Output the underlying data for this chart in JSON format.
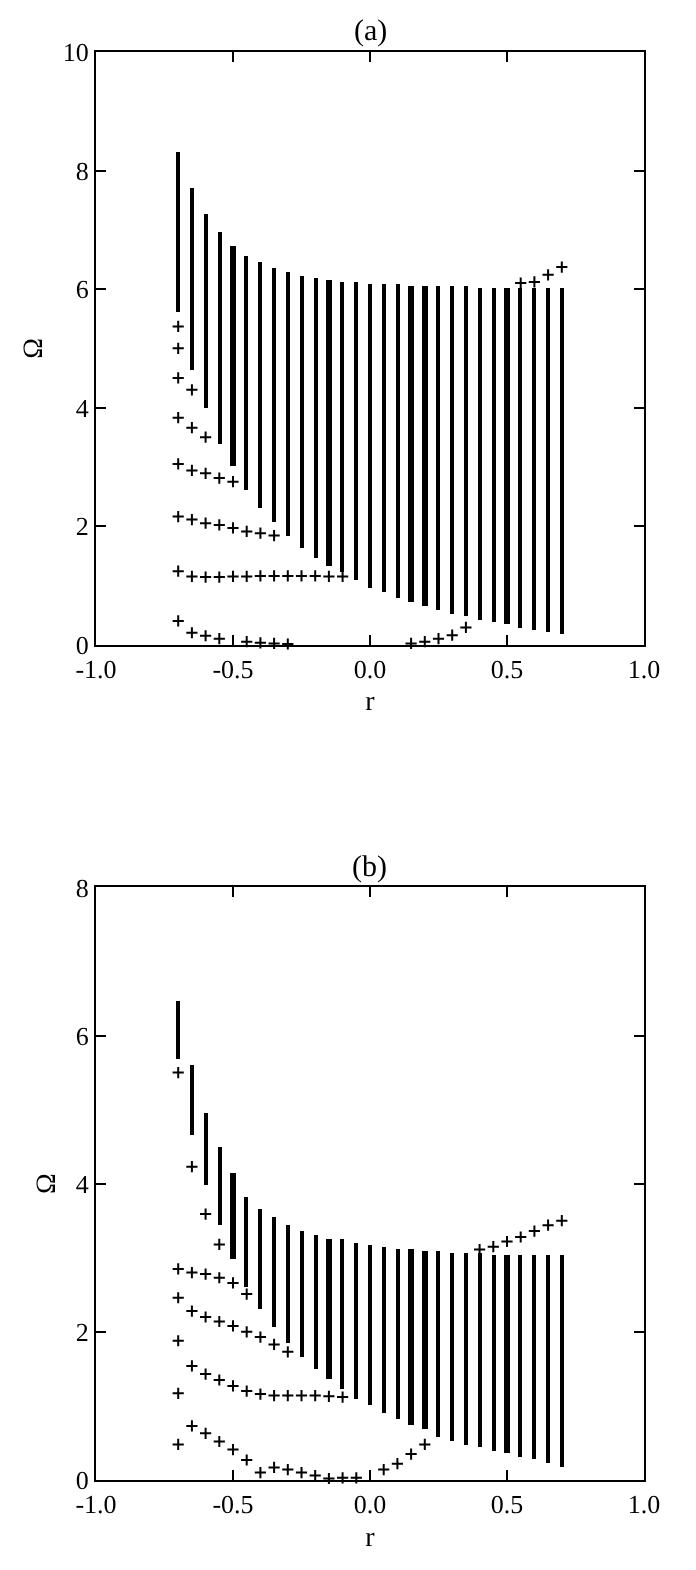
{
  "chart_data": [
    {
      "type": "bar",
      "title": "(a)",
      "xlabel": "r",
      "ylabel": "Ω",
      "xlim": [
        -1,
        1
      ],
      "xticks": [
        {
          "value": -1,
          "label": "-1.0"
        },
        {
          "value": -0.5,
          "label": "-0.5"
        },
        {
          "value": 0,
          "label": "0.0"
        },
        {
          "value": 0.5,
          "label": "0.5"
        },
        {
          "value": 1,
          "label": "1.0"
        }
      ],
      "ylim": [
        0,
        10
      ],
      "yticks": [
        0,
        2,
        4,
        6,
        8,
        10
      ],
      "series": [
        {
          "color": "#000000",
          "x": [
            -0.7,
            -0.65,
            -0.6,
            -0.55,
            -0.5,
            -0.45,
            -0.4,
            -0.35,
            -0.3,
            -0.25,
            -0.2,
            -0.15,
            -0.1,
            -0.05,
            0,
            0.05,
            0.1,
            0.15,
            0.2,
            0.25,
            0.3,
            0.35,
            0.4,
            0.45,
            0.5,
            0.55,
            0.6,
            0.65,
            0.7
          ],
          "base": [
            5.6,
            4.65,
            4.0,
            3.4,
            3.0,
            2.6,
            2.3,
            2.08,
            1.83,
            1.62,
            1.46,
            1.34,
            1.21,
            1.1,
            0.97,
            0.89,
            0.78,
            0.72,
            0.64,
            0.58,
            0.53,
            0.48,
            0.42,
            0.38,
            0.34,
            0.29,
            0.26,
            0.22,
            0.18
          ],
          "values": [
            2.7,
            3.05,
            3.25,
            3.55,
            3.72,
            3.95,
            4.15,
            4.28,
            4.45,
            4.61,
            4.71,
            4.8,
            4.92,
            5.01,
            5.13,
            5.19,
            5.29,
            5.34,
            5.41,
            5.47,
            5.51,
            5.56,
            5.61,
            5.65,
            5.69,
            5.73,
            5.76,
            5.8,
            5.84
          ]
        },
        {
          "type": "scatter",
          "marker": "cross",
          "color": "#000000",
          "x": [
            -0.7,
            -0.7,
            -0.7,
            -0.65,
            -0.7,
            -0.65,
            -0.6,
            -0.7,
            -0.65,
            -0.6,
            -0.55,
            -0.5,
            -0.7,
            -0.65,
            -0.6,
            -0.55,
            -0.5,
            -0.45,
            -0.4,
            -0.35,
            -0.7,
            -0.65,
            -0.6,
            -0.55,
            -0.5,
            -0.45,
            -0.4,
            -0.35,
            -0.3,
            -0.25,
            -0.2,
            -0.15,
            -0.1,
            -0.7,
            -0.65,
            -0.6,
            -0.55,
            -0.45,
            -0.4,
            -0.35,
            -0.3,
            0.15,
            0.2,
            0.25,
            0.3,
            0.35,
            0.55,
            0.6,
            0.65,
            0.7
          ],
          "values": [
            5.37,
            5.0,
            4.5,
            4.3,
            3.83,
            3.66,
            3.5,
            3.05,
            2.94,
            2.89,
            2.81,
            2.75,
            2.16,
            2.11,
            2.05,
            2.02,
            1.97,
            1.91,
            1.88,
            1.84,
            1.24,
            1.15,
            1.14,
            1.14,
            1.15,
            1.15,
            1.16,
            1.16,
            1.16,
            1.16,
            1.16,
            1.15,
            1.15,
            0.4,
            0.2,
            0.15,
            0.1,
            0.05,
            0.03,
            0.02,
            0.01,
            0.02,
            0.05,
            0.1,
            0.16,
            0.29,
            6.1,
            6.12,
            6.24,
            6.37
          ]
        }
      ]
    },
    {
      "type": "bar",
      "title": "(b)",
      "xlabel": "r",
      "ylabel": "Ω",
      "xlim": [
        -1,
        1
      ],
      "xticks": [
        {
          "value": -1,
          "label": "-1.0"
        },
        {
          "value": -0.5,
          "label": "-0.5"
        },
        {
          "value": 0,
          "label": "0.0"
        },
        {
          "value": 0.5,
          "label": "0.5"
        },
        {
          "value": 1,
          "label": "1.0"
        }
      ],
      "ylim": [
        0,
        8
      ],
      "yticks": [
        0,
        2,
        4,
        6,
        8
      ],
      "series": [
        {
          "color": "#000000",
          "x": [
            -0.7,
            -0.65,
            -0.6,
            -0.55,
            -0.5,
            -0.45,
            -0.4,
            -0.35,
            -0.3,
            -0.25,
            -0.2,
            -0.15,
            -0.1,
            -0.05,
            0,
            0.05,
            0.1,
            0.15,
            0.2,
            0.25,
            0.3,
            0.35,
            0.4,
            0.45,
            0.5,
            0.55,
            0.6,
            0.65,
            0.7
          ],
          "base": [
            5.67,
            4.65,
            3.98,
            3.45,
            2.97,
            2.6,
            2.31,
            2.07,
            1.85,
            1.66,
            1.49,
            1.35,
            1.23,
            1.08,
            1.02,
            0.91,
            0.81,
            0.73,
            0.67,
            0.58,
            0.52,
            0.48,
            0.43,
            0.39,
            0.35,
            0.31,
            0.28,
            0.23,
            0.18
          ],
          "values": [
            0.78,
            0.95,
            0.97,
            1.03,
            1.16,
            1.22,
            1.34,
            1.47,
            1.59,
            1.7,
            1.81,
            1.91,
            2.01,
            2.12,
            2.15,
            2.23,
            2.31,
            2.37,
            2.42,
            2.5,
            2.55,
            2.58,
            2.62,
            2.65,
            2.69,
            2.72,
            2.75,
            2.8,
            2.84
          ]
        },
        {
          "type": "scatter",
          "marker": "cross",
          "color": "#000000",
          "x": [
            -0.7,
            -0.65,
            -0.6,
            -0.55,
            -0.7,
            -0.65,
            -0.6,
            -0.55,
            -0.5,
            -0.45,
            -0.7,
            -0.65,
            -0.6,
            -0.55,
            -0.5,
            -0.45,
            -0.4,
            -0.35,
            -0.3,
            -0.7,
            -0.65,
            -0.6,
            -0.55,
            -0.5,
            -0.45,
            -0.4,
            -0.35,
            -0.3,
            -0.25,
            -0.2,
            -0.15,
            -0.1,
            -0.7,
            -0.7,
            -0.65,
            -0.6,
            -0.55,
            -0.5,
            -0.45,
            -0.4,
            -0.35,
            -0.3,
            -0.25,
            -0.2,
            -0.15,
            -0.1,
            -0.05,
            0.05,
            0.1,
            0.15,
            0.2,
            0.4,
            0.45,
            0.5,
            0.55,
            0.6,
            0.65,
            0.7
          ],
          "values": [
            5.5,
            4.23,
            3.59,
            3.18,
            2.85,
            2.8,
            2.78,
            2.73,
            2.66,
            2.51,
            2.46,
            2.28,
            2.2,
            2.14,
            2.08,
            2.0,
            1.93,
            1.83,
            1.73,
            1.88,
            1.54,
            1.43,
            1.35,
            1.27,
            1.2,
            1.16,
            1.14,
            1.14,
            1.14,
            1.14,
            1.13,
            1.12,
            1.17,
            0.48,
            0.73,
            0.63,
            0.52,
            0.41,
            0.27,
            0.1,
            0.17,
            0.14,
            0.1,
            0.06,
            0.02,
            0.03,
            0.03,
            0.14,
            0.22,
            0.35,
            0.48,
            3.11,
            3.15,
            3.22,
            3.28,
            3.36,
            3.44,
            3.5
          ]
        }
      ]
    }
  ]
}
